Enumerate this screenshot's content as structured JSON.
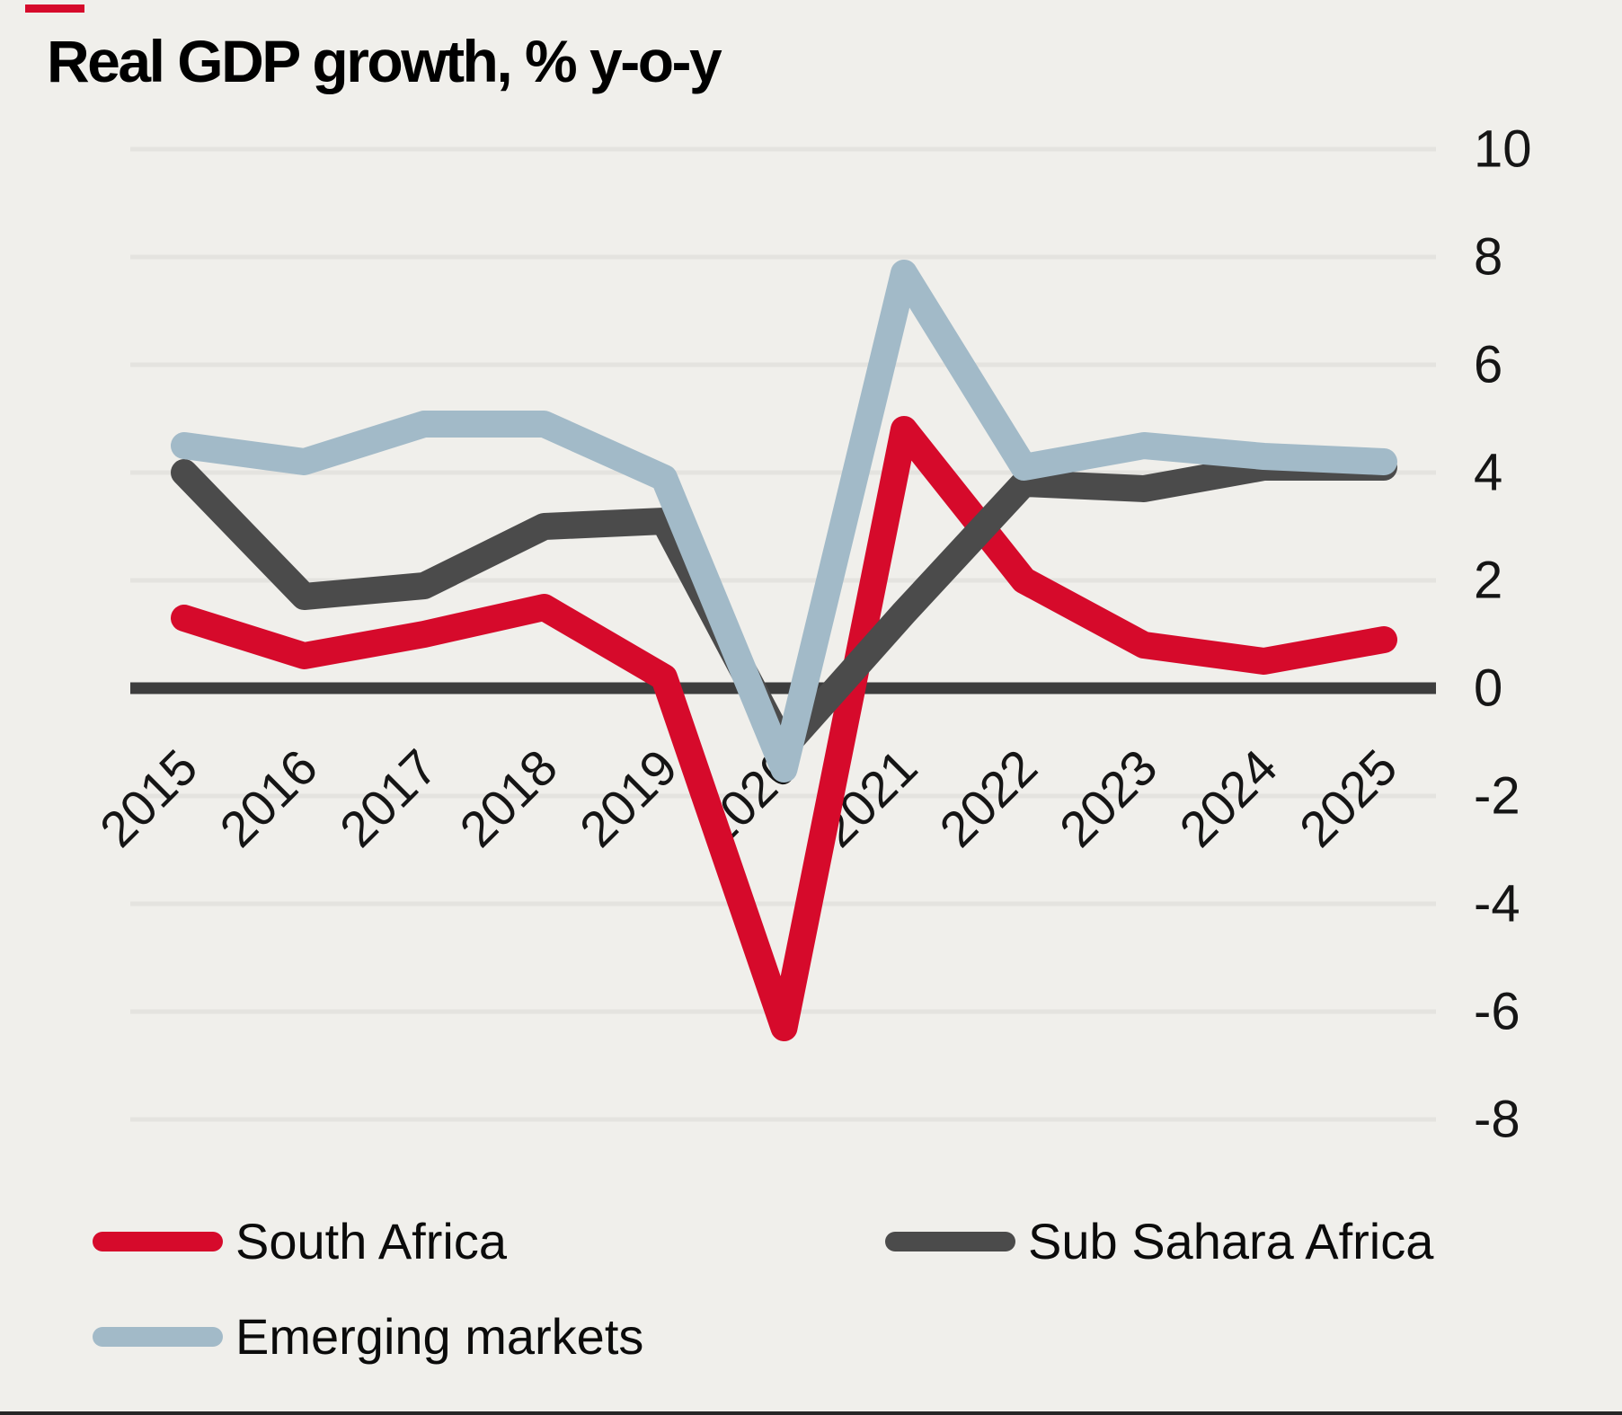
{
  "page": {
    "title": "Real GDP growth, % y-o-y"
  },
  "style": {
    "background": "#f0efeb",
    "gridline_color": "#e4e3df",
    "zero_line_color": "#3d3d3d",
    "axis_text_color": "#151515",
    "title_color": "#000000",
    "accent_dash_color": "#d60a2b",
    "bottom_border_color": "#262626"
  },
  "chart_data": {
    "type": "line",
    "title": "Real GDP growth, % y-o-y",
    "categories": [
      "2015",
      "2016",
      "2017",
      "2018",
      "2019",
      "2020",
      "2021",
      "2022",
      "2023",
      "2024",
      "2025"
    ],
    "series": [
      {
        "name": "South Africa",
        "color": "#d60a2b",
        "values": [
          1.3,
          0.6,
          1.0,
          1.5,
          0.2,
          -6.3,
          4.8,
          2.0,
          0.8,
          0.5,
          0.9
        ]
      },
      {
        "name": "Sub Sahara Africa",
        "color": "#4b4b4b",
        "values": [
          4.0,
          1.7,
          1.9,
          3.0,
          3.1,
          -1.1,
          1.4,
          3.8,
          3.7,
          4.1,
          4.1
        ]
      },
      {
        "name": "Emerging markets",
        "color": "#a2bac8",
        "values": [
          4.5,
          4.2,
          4.9,
          4.9,
          3.9,
          -1.5,
          7.7,
          4.1,
          4.5,
          4.3,
          4.2
        ]
      }
    ],
    "y_ticks": [
      10,
      8,
      6,
      4,
      2,
      0,
      -2,
      -4,
      -6,
      -8
    ],
    "ylim": [
      -8,
      10
    ],
    "xlabel": "",
    "ylabel": "",
    "grid": true,
    "x_label_rotation": -45,
    "y_axis_side": "right",
    "legend_position": "bottom"
  },
  "legend": {
    "items": [
      {
        "label": "South Africa"
      },
      {
        "label": "Sub Sahara Africa"
      },
      {
        "label": "Emerging markets"
      }
    ]
  }
}
